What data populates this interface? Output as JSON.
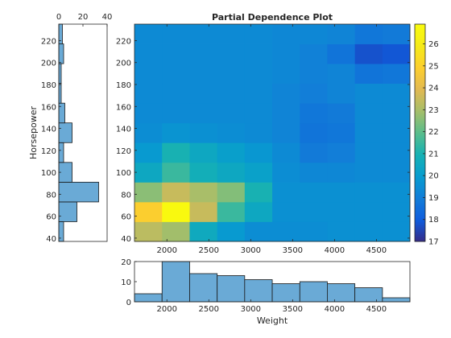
{
  "chart_data": [
    {
      "type": "heatmap",
      "title": "Partial Dependence Plot",
      "xlim": [
        1613,
        4900
      ],
      "ylim": [
        37,
        235
      ],
      "x_edges": [
        1613,
        1942,
        2271,
        2600,
        2928,
        3257,
        3586,
        3914,
        4243,
        4572,
        4900
      ],
      "y_edges": [
        37,
        55,
        73,
        91,
        109,
        127,
        145,
        163,
        181,
        199,
        217,
        235
      ],
      "x_ticks": [
        2000,
        2500,
        3000,
        3500,
        4000,
        4500
      ],
      "y_ticks": [
        40,
        60,
        80,
        100,
        120,
        140,
        160,
        180,
        200,
        220
      ],
      "values": [
        [
          23.3,
          22.9,
          20.6,
          19.9,
          19.5,
          19.5,
          19.5,
          19.6,
          19.6,
          19.6
        ],
        [
          24.9,
          26.8,
          23.5,
          21.5,
          20.5,
          19.6,
          19.6,
          19.6,
          19.6,
          19.6
        ],
        [
          22.6,
          23.5,
          23.0,
          22.5,
          21.0,
          19.6,
          19.6,
          19.6,
          19.6,
          19.6
        ],
        [
          20.5,
          21.5,
          20.8,
          20.5,
          20.2,
          19.5,
          19.3,
          19.3,
          19.4,
          19.4
        ],
        [
          19.9,
          21.0,
          20.5,
          20.1,
          19.8,
          19.4,
          18.9,
          19.0,
          19.4,
          19.4
        ],
        [
          19.5,
          19.7,
          19.6,
          19.5,
          19.4,
          19.2,
          18.7,
          18.8,
          19.4,
          19.4
        ],
        [
          19.4,
          19.4,
          19.4,
          19.4,
          19.4,
          19.2,
          18.8,
          18.9,
          19.4,
          19.4
        ],
        [
          19.4,
          19.4,
          19.4,
          19.4,
          19.4,
          19.2,
          19.0,
          19.2,
          19.4,
          19.4
        ],
        [
          19.4,
          19.4,
          19.4,
          19.4,
          19.4,
          19.3,
          19.1,
          19.2,
          18.7,
          18.8
        ],
        [
          19.4,
          19.4,
          19.4,
          19.4,
          19.4,
          19.3,
          19.1,
          18.7,
          17.8,
          17.9
        ],
        [
          19.4,
          19.4,
          19.4,
          19.4,
          19.4,
          19.3,
          19.3,
          19.2,
          18.8,
          18.9
        ]
      ],
      "colorbar": {
        "min": 17,
        "max": 26.9,
        "ticks": [
          17,
          18,
          19,
          20,
          21,
          22,
          23,
          24,
          25,
          26
        ]
      }
    },
    {
      "type": "bar",
      "orientation": "horizontal",
      "ylabel": "Horsepower",
      "bin_edges": [
        37,
        55,
        73,
        91,
        109,
        127,
        145,
        163,
        181,
        199,
        217,
        235
      ],
      "values": [
        4,
        15,
        33,
        11,
        4,
        11,
        5,
        2,
        2,
        4,
        3
      ],
      "xlim": [
        0,
        40
      ],
      "x_ticks": [
        0,
        20,
        40
      ]
    },
    {
      "type": "bar",
      "xlabel": "Weight",
      "bin_edges": [
        1613,
        1942,
        2271,
        2600,
        2928,
        3257,
        3586,
        3914,
        4243,
        4572,
        4900
      ],
      "values": [
        4,
        21,
        14,
        13,
        11,
        9,
        10,
        9,
        7,
        2
      ],
      "ylim": [
        0,
        20
      ],
      "y_ticks": [
        0,
        10,
        20
      ],
      "x_ticks": [
        2000,
        2500,
        3000,
        3500,
        4000,
        4500
      ]
    }
  ]
}
